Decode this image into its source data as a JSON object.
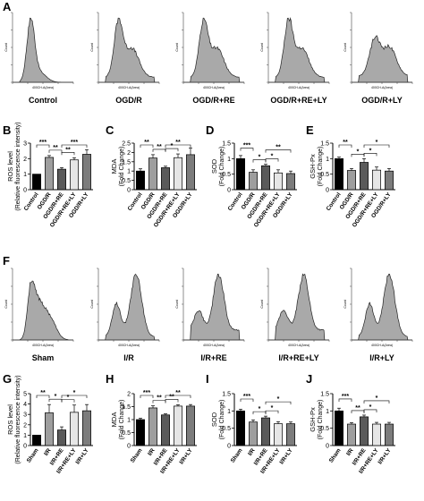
{
  "flow_xlabel": "400CH-A(Area)",
  "flow_ylabel": "Count",
  "chart_data": [
    {
      "type": "histogram",
      "panel": "A",
      "title": "Control"
    },
    {
      "type": "histogram",
      "panel": "A",
      "title": "OGD/R"
    },
    {
      "type": "histogram",
      "panel": "A",
      "title": "OGD/R+RE"
    },
    {
      "type": "histogram",
      "panel": "A",
      "title": "OGD/R+RE+LY"
    },
    {
      "type": "histogram",
      "panel": "A",
      "title": "OGD/R+LY"
    },
    {
      "type": "bar",
      "panel": "B",
      "ylabel": "ROS level",
      "ylabel2": "(Relative fluorescence intensity)",
      "categories": [
        "Control",
        "OGD/R",
        "OGD/R+RE",
        "OGD/R+RE+LY",
        "OGD/R+LY"
      ],
      "values": [
        1.0,
        2.08,
        1.32,
        1.92,
        2.28
      ],
      "errors": [
        0.0,
        0.12,
        0.1,
        0.14,
        0.3
      ],
      "ylim": [
        0,
        3
      ],
      "yticks": [
        0,
        1,
        2,
        3
      ],
      "sig": [
        "***",
        "**",
        "**",
        "***"
      ]
    },
    {
      "type": "bar",
      "panel": "C",
      "ylabel": "MDA",
      "ylabel2": "(Fold Change)",
      "categories": [
        "Control",
        "OGD/R",
        "OGD/R+RE",
        "OGD/R+RE+LY",
        "OGD/R+LY"
      ],
      "values": [
        1.0,
        1.7,
        1.18,
        1.72,
        1.88
      ],
      "errors": [
        0.12,
        0.18,
        0.08,
        0.2,
        0.35
      ],
      "ylim": [
        0,
        2.5
      ],
      "yticks": [
        0,
        0.5,
        1,
        1.5,
        2,
        2.5
      ],
      "sig": [
        "**",
        "**",
        "*",
        "**"
      ]
    },
    {
      "type": "bar",
      "panel": "D",
      "ylabel": "SOD",
      "ylabel2": "(Fold Change)",
      "categories": [
        "Control",
        "OGD/R",
        "OGD/R+RE",
        "OGD/R+RE+LY",
        "OGD/R+LY"
      ],
      "values": [
        1.0,
        0.56,
        0.77,
        0.54,
        0.52
      ],
      "errors": [
        0.1,
        0.08,
        0.05,
        0.1,
        0.08
      ],
      "ylim": [
        0,
        1.5
      ],
      "yticks": [
        0,
        0.5,
        1,
        1.5
      ],
      "sig": [
        "***",
        "*",
        "*",
        "**"
      ]
    },
    {
      "type": "bar",
      "panel": "E",
      "ylabel": "GSH-Px",
      "ylabel2": "(Fold Change)",
      "categories": [
        "Control",
        "OGD/R",
        "OGD/R+RE",
        "OGD/R+RE+LY",
        "OGD/R+LY"
      ],
      "values": [
        1.0,
        0.62,
        0.88,
        0.63,
        0.6
      ],
      "errors": [
        0.05,
        0.06,
        0.12,
        0.1,
        0.08
      ],
      "ylim": [
        0,
        1.5
      ],
      "yticks": [
        0,
        0.5,
        1,
        1.5
      ],
      "sig": [
        "**",
        "*",
        "*",
        "*"
      ]
    },
    {
      "type": "histogram",
      "panel": "F",
      "title": "Sham"
    },
    {
      "type": "histogram",
      "panel": "F",
      "title": "I/R"
    },
    {
      "type": "histogram",
      "panel": "F",
      "title": "I/R+RE"
    },
    {
      "type": "histogram",
      "panel": "F",
      "title": "I/R+RE+LY"
    },
    {
      "type": "histogram",
      "panel": "F",
      "title": "I/R+LY"
    },
    {
      "type": "bar",
      "panel": "G",
      "ylabel": "ROS level",
      "ylabel2": "(Relative fluorescence intensity)",
      "categories": [
        "Sham",
        "I/R",
        "I/R+RE",
        "I/R+RE+LY",
        "I/R+LY"
      ],
      "values": [
        1.0,
        3.15,
        1.5,
        3.2,
        3.35
      ],
      "errors": [
        0.0,
        0.8,
        0.3,
        0.7,
        0.6
      ],
      "ylim": [
        0,
        5
      ],
      "yticks": [
        0,
        1,
        2,
        3,
        4,
        5
      ],
      "sig": [
        "**",
        "*",
        "*",
        "*"
      ]
    },
    {
      "type": "bar",
      "panel": "H",
      "ylabel": "MDA",
      "ylabel2": "(Fold Change)",
      "categories": [
        "Sham",
        "I/R",
        "I/R+RE",
        "I/R+RE+LY",
        "I/R+LY"
      ],
      "values": [
        1.0,
        1.45,
        1.18,
        1.52,
        1.52
      ],
      "errors": [
        0.05,
        0.08,
        0.04,
        0.05,
        0.06
      ],
      "ylim": [
        0,
        2
      ],
      "yticks": [
        0,
        0.5,
        1,
        1.5,
        2
      ],
      "sig": [
        "***",
        "**",
        "**",
        "**"
      ]
    },
    {
      "type": "bar",
      "panel": "I",
      "ylabel": "SOD",
      "ylabel2": "(Fold Change)",
      "categories": [
        "Sham",
        "I/R",
        "I/R+RE",
        "I/R+RE+LY",
        "I/R+LY"
      ],
      "values": [
        1.0,
        0.68,
        0.8,
        0.63,
        0.63
      ],
      "errors": [
        0.05,
        0.06,
        0.05,
        0.06,
        0.05
      ],
      "ylim": [
        0,
        1.5
      ],
      "yticks": [
        0,
        0.5,
        1,
        1.5
      ],
      "sig": [
        "***",
        "*",
        "*",
        "*"
      ]
    },
    {
      "type": "bar",
      "panel": "J",
      "ylabel": "GSH-Px",
      "ylabel2": "(Fold Change)",
      "categories": [
        "Sham",
        "I/R",
        "I/R+RE",
        "I/R+RE+LY",
        "I/R+LY"
      ],
      "values": [
        1.0,
        0.62,
        0.83,
        0.62,
        0.62
      ],
      "errors": [
        0.08,
        0.04,
        0.05,
        0.05,
        0.05
      ],
      "ylim": [
        0,
        1.5
      ],
      "yticks": [
        0,
        0.5,
        1,
        1.5
      ],
      "sig": [
        "***",
        "**",
        "*",
        "*"
      ]
    }
  ],
  "colors": {
    "bar_fills": [
      "#000000",
      "#9e9e9e",
      "#5a5a5a",
      "#e6e6e6",
      "#7c7c7c"
    ],
    "hist_fill": "#a9a9a9"
  }
}
